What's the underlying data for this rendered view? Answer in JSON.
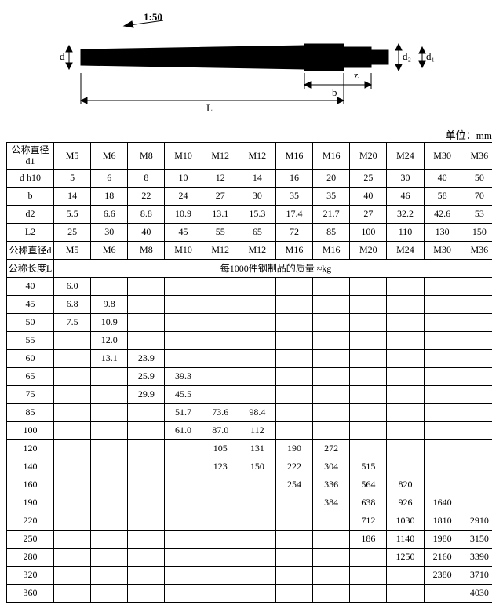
{
  "unit_label": "单位：mm",
  "diagram": {
    "d": "d",
    "taper": "1:50",
    "L": "L",
    "b": "b",
    "z": "z",
    "dp": "d₂",
    "d1": "d₁"
  },
  "table1": {
    "headers": [
      "公称直径\nd1",
      "M5",
      "M6",
      "M8",
      "M10",
      "M12",
      "M12",
      "M16",
      "M16",
      "M20",
      "M24",
      "M30",
      "M36"
    ],
    "rows": [
      {
        "label": "d  h10",
        "v": [
          "5",
          "6",
          "8",
          "10",
          "12",
          "14",
          "16",
          "20",
          "25",
          "30",
          "40",
          "50"
        ]
      },
      {
        "label": "b",
        "v": [
          "14",
          "18",
          "22",
          "24",
          "27",
          "30",
          "35",
          "35",
          "40",
          "46",
          "58",
          "70"
        ]
      },
      {
        "label": "d2",
        "v": [
          "5.5",
          "6.6",
          "8.8",
          "10.9",
          "13.1",
          "15.3",
          "17.4",
          "21.7",
          "27",
          "32.2",
          "42.6",
          "53"
        ]
      },
      {
        "label": "L2",
        "v": [
          "25",
          "30",
          "40",
          "45",
          "55",
          "65",
          "72",
          "85",
          "100",
          "110",
          "130",
          "150"
        ]
      }
    ]
  },
  "table2": {
    "h1": [
      "公称直径d",
      "M5",
      "M6",
      "M8",
      "M10",
      "M12",
      "M12",
      "M16",
      "M16",
      "M20",
      "M24",
      "M30",
      "M36"
    ],
    "h2_label": "公称长度L",
    "h2_span": "每1000件钢制品的质量 ≈kg",
    "rows": [
      {
        "l": "40",
        "v": [
          "6.0",
          "",
          "",
          "",
          "",
          "",
          "",
          "",
          "",
          "",
          "",
          ""
        ]
      },
      {
        "l": "45",
        "v": [
          "6.8",
          "9.8",
          "",
          "",
          "",
          "",
          "",
          "",
          "",
          "",
          "",
          ""
        ]
      },
      {
        "l": "50",
        "v": [
          "7.5",
          "10.9",
          "",
          "",
          "",
          "",
          "",
          "",
          "",
          "",
          "",
          ""
        ]
      },
      {
        "l": "55",
        "v": [
          "",
          "12.0",
          "",
          "",
          "",
          "",
          "",
          "",
          "",
          "",
          "",
          ""
        ]
      },
      {
        "l": "60",
        "v": [
          "",
          "13.1",
          "23.9",
          "",
          "",
          "",
          "",
          "",
          "",
          "",
          "",
          ""
        ]
      },
      {
        "l": "65",
        "v": [
          "",
          "",
          "25.9",
          "39.3",
          "",
          "",
          "",
          "",
          "",
          "",
          "",
          ""
        ]
      },
      {
        "l": "75",
        "v": [
          "",
          "",
          "29.9",
          "45.5",
          "",
          "",
          "",
          "",
          "",
          "",
          "",
          ""
        ]
      },
      {
        "l": "85",
        "v": [
          "",
          "",
          "",
          "51.7",
          "73.6",
          "98.4",
          "",
          "",
          "",
          "",
          "",
          ""
        ]
      },
      {
        "l": "100",
        "v": [
          "",
          "",
          "",
          "61.0",
          "87.0",
          "112",
          "",
          "",
          "",
          "",
          "",
          ""
        ]
      },
      {
        "l": "120",
        "v": [
          "",
          "",
          "",
          "",
          "105",
          "131",
          "190",
          "272",
          "",
          "",
          "",
          ""
        ]
      },
      {
        "l": "140",
        "v": [
          "",
          "",
          "",
          "",
          "123",
          "150",
          "222",
          "304",
          "515",
          "",
          "",
          ""
        ]
      },
      {
        "l": "160",
        "v": [
          "",
          "",
          "",
          "",
          "",
          "",
          "254",
          "336",
          "564",
          "820",
          "",
          ""
        ]
      },
      {
        "l": "190",
        "v": [
          "",
          "",
          "",
          "",
          "",
          "",
          "",
          "384",
          "638",
          "926",
          "1640",
          ""
        ]
      },
      {
        "l": "220",
        "v": [
          "",
          "",
          "",
          "",
          "",
          "",
          "",
          "",
          "712",
          "1030",
          "1810",
          "2910"
        ]
      },
      {
        "l": "250",
        "v": [
          "",
          "",
          "",
          "",
          "",
          "",
          "",
          "",
          "186",
          "1140",
          "1980",
          "3150"
        ]
      },
      {
        "l": "280",
        "v": [
          "",
          "",
          "",
          "",
          "",
          "",
          "",
          "",
          "",
          "1250",
          "2160",
          "3390"
        ]
      },
      {
        "l": "320",
        "v": [
          "",
          "",
          "",
          "",
          "",
          "",
          "",
          "",
          "",
          "",
          "2380",
          "3710"
        ]
      },
      {
        "l": "360",
        "v": [
          "",
          "",
          "",
          "",
          "",
          "",
          "",
          "",
          "",
          "",
          "",
          "4030"
        ]
      }
    ]
  }
}
